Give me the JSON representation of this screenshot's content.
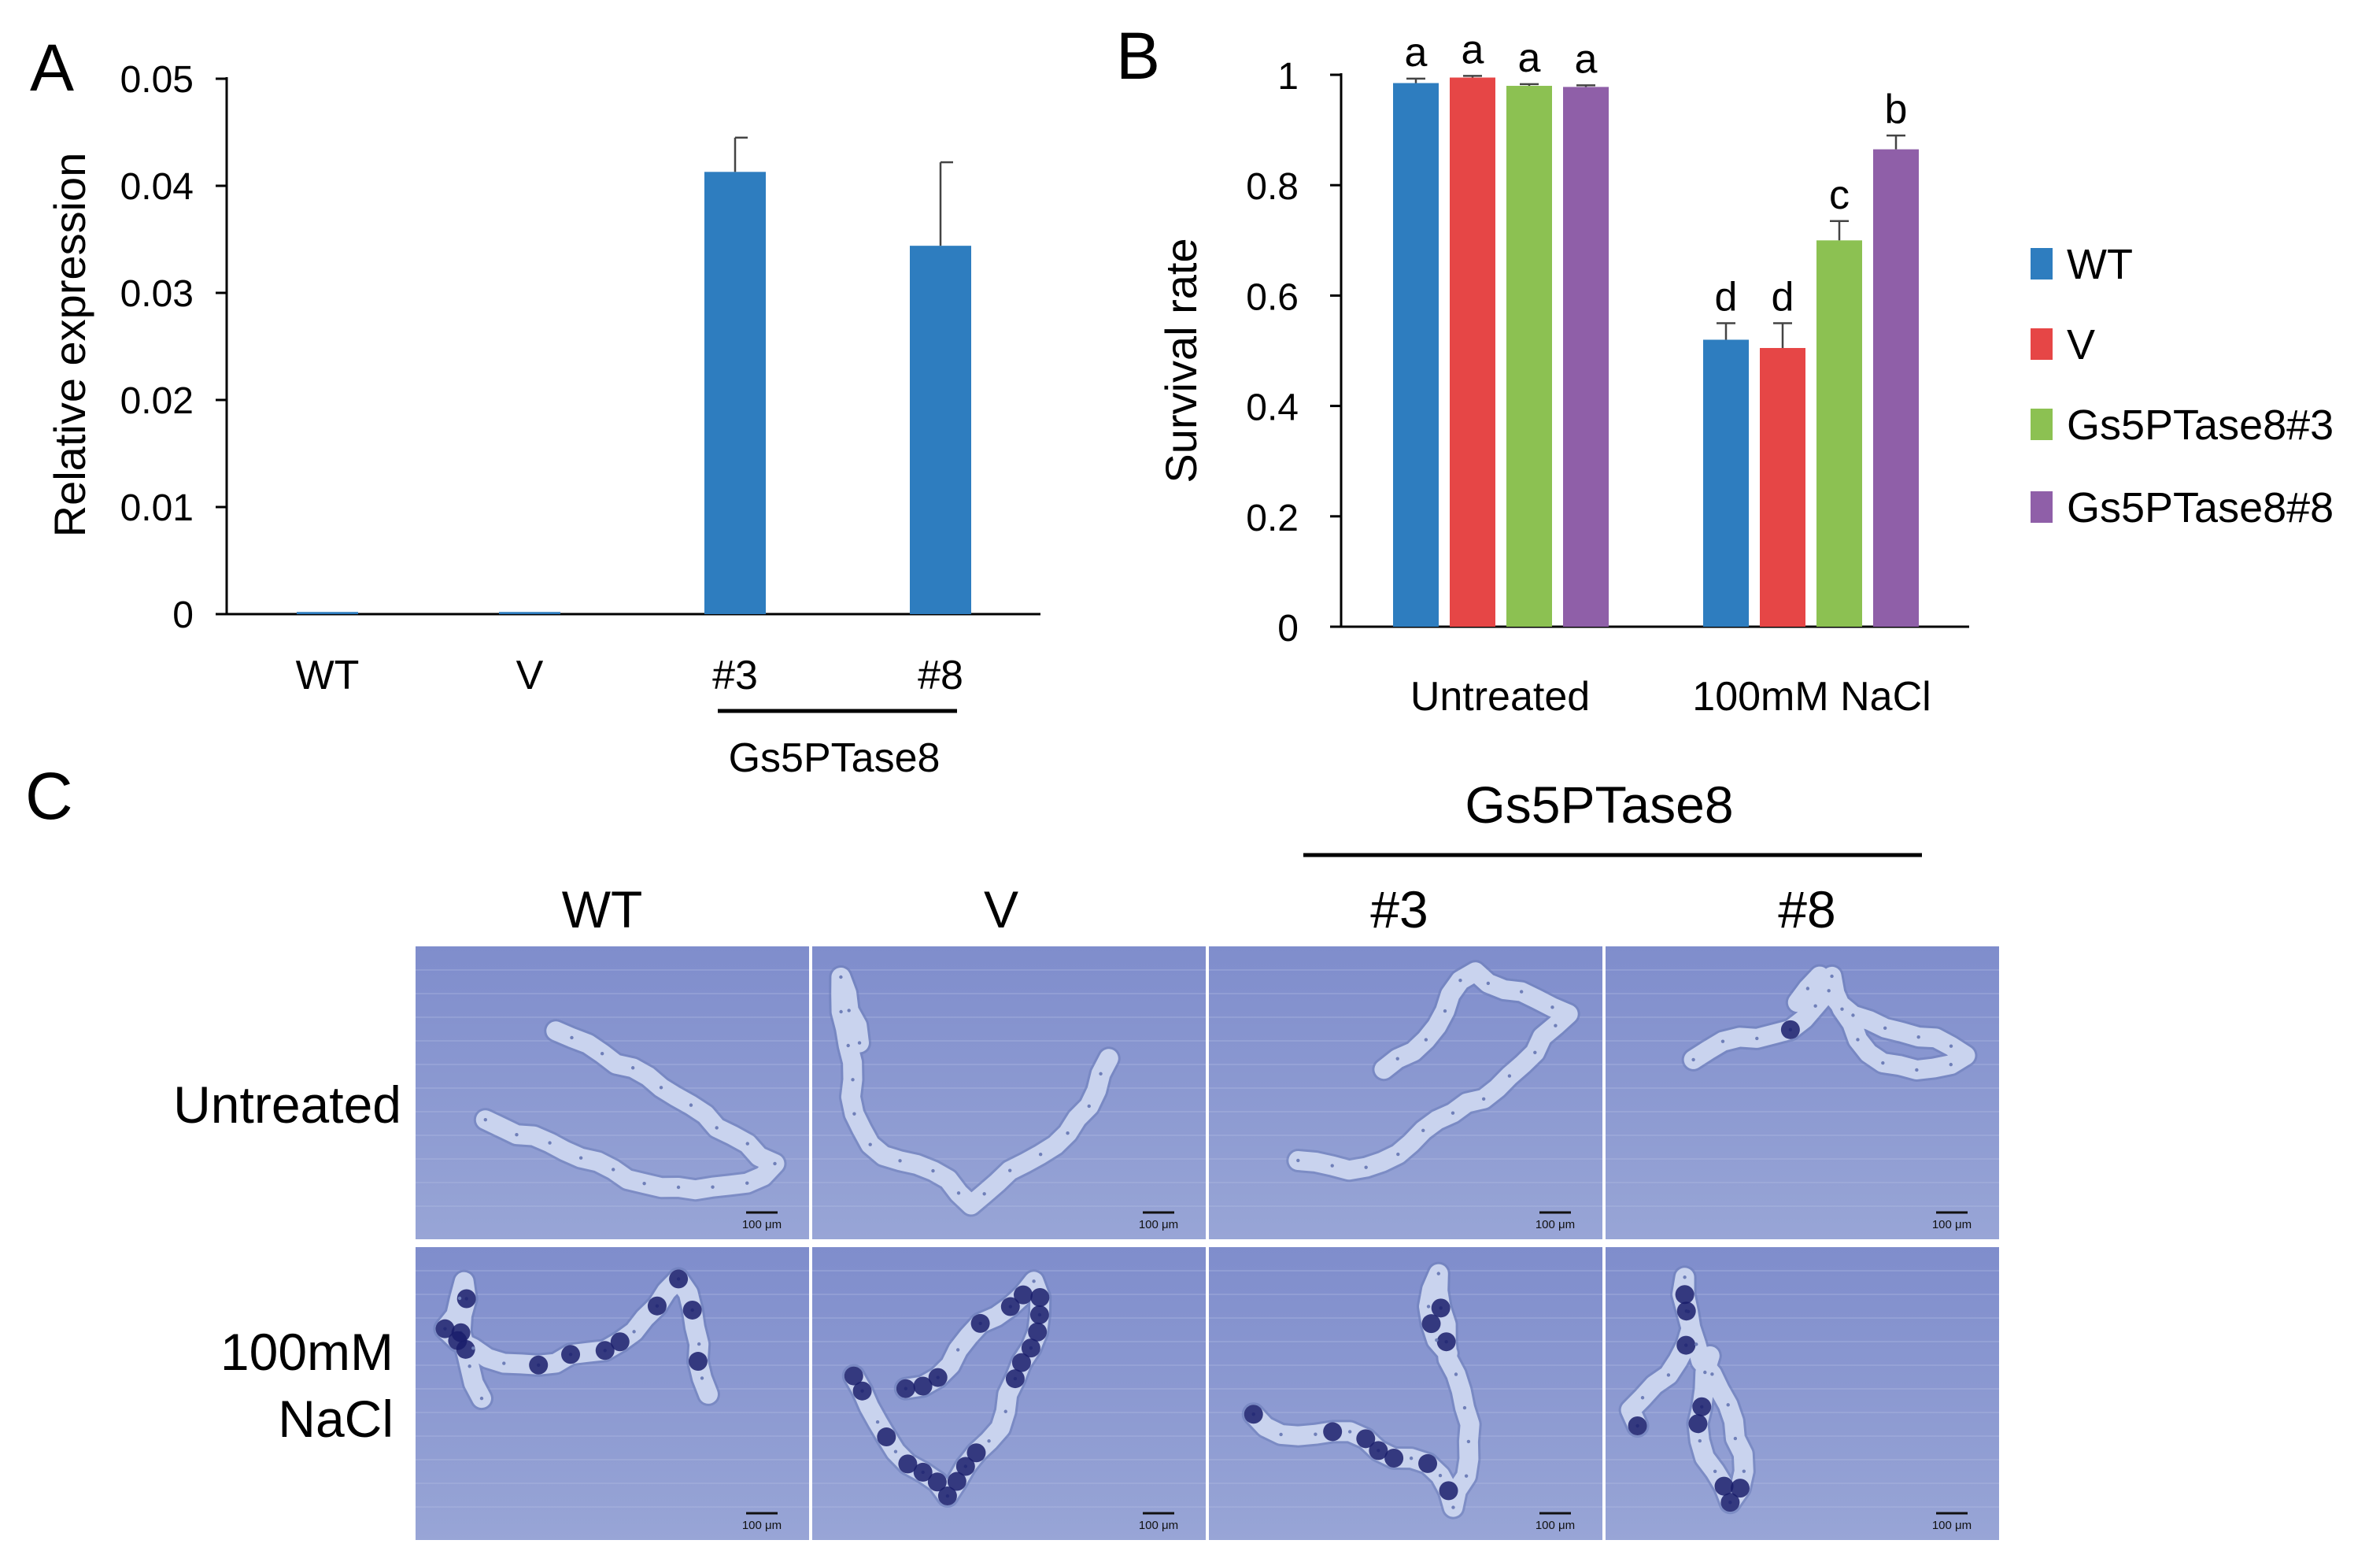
{
  "figure": {
    "panel_labels": [
      "A",
      "B",
      "C"
    ],
    "group_label": "Gs5PTase8"
  },
  "colors": {
    "WT": "#2e7dbf",
    "V": "#e64646",
    "Gs5PTase8#3": "#8cc152",
    "Gs5PTase8#8": "#8f5fa8",
    "micrograph_bg": "#8d9ad1",
    "stain": "#1a1d6b"
  },
  "chart_data": [
    {
      "panel": "A",
      "type": "bar",
      "categories": [
        "WT",
        "V",
        "#3",
        "#8"
      ],
      "values": [
        0.0002,
        0.0002,
        0.0413,
        0.0344
      ],
      "errors": [
        0.0,
        0.0,
        0.0032,
        0.0078
      ],
      "title": "",
      "xlabel": "",
      "ylabel": "Relative expression",
      "ylim": [
        0,
        0.05
      ],
      "yticks": [
        0,
        0.01,
        0.02,
        0.03,
        0.04,
        0.05
      ],
      "ytick_labels": [
        "0",
        "0.01",
        "0.02",
        "0.03",
        "0.04",
        "0.05"
      ],
      "grouping": {
        "label": "Gs5PTase8",
        "members": [
          "#3",
          "#8"
        ]
      },
      "grid": false
    },
    {
      "panel": "B",
      "type": "bar",
      "categories": [
        "Untreated",
        "100mM NaCl"
      ],
      "series": [
        {
          "name": "WT",
          "values": [
            0.985,
            0.52
          ],
          "errors": [
            0.008,
            0.03
          ],
          "letters": [
            "a",
            "d"
          ]
        },
        {
          "name": "V",
          "values": [
            0.995,
            0.505
          ],
          "errors": [
            0.003,
            0.045
          ],
          "letters": [
            "a",
            "d"
          ]
        },
        {
          "name": "Gs5PTase8#3",
          "values": [
            0.98,
            0.7
          ],
          "errors": [
            0.003,
            0.035
          ],
          "letters": [
            "a",
            "c"
          ]
        },
        {
          "name": "Gs5PTase8#8",
          "values": [
            0.978,
            0.865
          ],
          "errors": [
            0.003,
            0.025
          ],
          "letters": [
            "a",
            "b"
          ]
        }
      ],
      "ylabel": "Survival rate",
      "ylim": [
        0,
        1
      ],
      "yticks": [
        0,
        0.2,
        0.4,
        0.6,
        0.8,
        1
      ],
      "ytick_labels": [
        "0",
        "0.2",
        "0.4",
        "0.6",
        "0.8",
        "1"
      ],
      "legend_position": "right",
      "grid": false
    }
  ],
  "panel_c": {
    "columns": [
      "WT",
      "V",
      "#3",
      "#8"
    ],
    "rows": [
      "Untreated",
      "100mM NaCl"
    ],
    "row_label_lines": [
      [
        "Untreated"
      ],
      [
        "100mM",
        "NaCl"
      ]
    ],
    "scale_bar_label": "100 μm",
    "staining_level": [
      [
        0.0,
        0.0,
        0.0,
        0.05
      ],
      [
        0.55,
        0.9,
        0.45,
        0.3
      ]
    ]
  }
}
